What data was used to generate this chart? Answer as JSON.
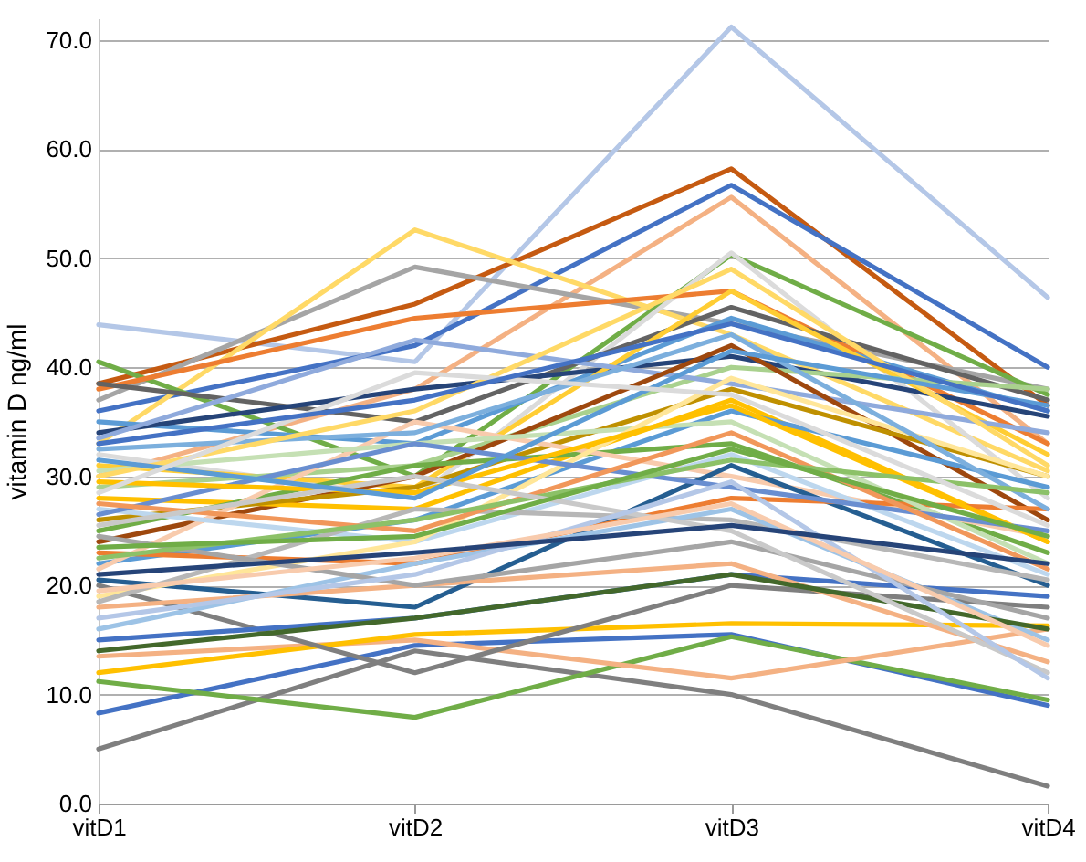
{
  "chart_data": {
    "type": "line",
    "ylabel": "vitamin D ng/ml",
    "categories": [
      "vitD1",
      "vitD2",
      "vitD3",
      "vitD4"
    ],
    "ylim": [
      0,
      72
    ],
    "yticks": [
      {
        "value": 0,
        "label": "0.0"
      },
      {
        "value": 10,
        "label": "10.0"
      },
      {
        "value": 20,
        "label": "20.0"
      },
      {
        "value": 30,
        "label": "30.0"
      },
      {
        "value": 40,
        "label": "40.0"
      },
      {
        "value": 50,
        "label": "50.0"
      },
      {
        "value": 60,
        "label": "60.0"
      },
      {
        "value": 70,
        "label": "70.0"
      }
    ],
    "grid": "y",
    "legend": false,
    "line_style": "solid",
    "marker": "none",
    "series": [
      {
        "color": "#b4c7e7",
        "values": [
          43.9,
          40.5,
          71.2,
          46.4
        ]
      },
      {
        "color": "#c55a11",
        "values": [
          38.5,
          45.8,
          58.2,
          36.5
        ]
      },
      {
        "color": "#4472c4",
        "values": [
          36.0,
          42.0,
          56.7,
          40.0
        ]
      },
      {
        "color": "#f4b183",
        "values": [
          30.0,
          38.0,
          55.6,
          33.0
        ]
      },
      {
        "color": "#a5a5a5",
        "values": [
          37.0,
          49.2,
          44.0,
          38.0
        ]
      },
      {
        "color": "#ffd966",
        "values": [
          33.0,
          52.6,
          43.0,
          30.5
        ]
      },
      {
        "color": "#70ad47",
        "values": [
          40.5,
          30.0,
          50.3,
          37.5
        ]
      },
      {
        "color": "#dbdbdb",
        "values": [
          32.0,
          28.0,
          50.5,
          28.0
        ]
      },
      {
        "color": "#7f7f7f",
        "values": [
          5.0,
          14.0,
          10.0,
          1.6
        ]
      },
      {
        "color": "#4472c4",
        "values": [
          8.3,
          14.5,
          15.5,
          9.0
        ]
      },
      {
        "color": "#70ad47",
        "values": [
          11.2,
          7.9,
          15.3,
          9.5
        ]
      },
      {
        "color": "#f4b183",
        "values": [
          13.5,
          15.0,
          11.5,
          16.0
        ]
      },
      {
        "color": "#ffc000",
        "values": [
          12.0,
          15.5,
          16.5,
          16.3
        ]
      },
      {
        "color": "#7f7f7f",
        "values": [
          20.0,
          12.0,
          20.0,
          18.0
        ]
      },
      {
        "color": "#ed7d31",
        "values": [
          38.0,
          44.5,
          47.0,
          33.0
        ]
      },
      {
        "color": "#636363",
        "values": [
          38.5,
          35.0,
          45.5,
          37.0
        ]
      },
      {
        "color": "#5b9bd5",
        "values": [
          35.0,
          33.0,
          44.5,
          36.0
        ]
      },
      {
        "color": "#264478",
        "values": [
          34.0,
          38.0,
          41.0,
          35.5
        ]
      },
      {
        "color": "#ffcd33",
        "values": [
          31.0,
          29.0,
          47.0,
          32.0
        ]
      },
      {
        "color": "#a9d18e",
        "values": [
          29.0,
          31.0,
          40.0,
          38.0
        ]
      },
      {
        "color": "#8faadc",
        "values": [
          33.5,
          42.5,
          38.5,
          34.0
        ]
      },
      {
        "color": "#9e480e",
        "values": [
          24.0,
          30.0,
          42.0,
          26.0
        ]
      },
      {
        "color": "#ffc000",
        "values": [
          28.0,
          27.0,
          37.0,
          24.0
        ]
      },
      {
        "color": "#bf9000",
        "values": [
          26.0,
          29.0,
          38.0,
          30.0
        ]
      },
      {
        "color": "#5b9bd5",
        "values": [
          22.0,
          26.0,
          36.0,
          29.0
        ]
      },
      {
        "color": "#70ad47",
        "values": [
          25.0,
          31.0,
          33.0,
          23.0
        ]
      },
      {
        "color": "#f8cbad",
        "values": [
          21.5,
          35.0,
          30.0,
          24.5
        ]
      },
      {
        "color": "#255e91",
        "values": [
          20.5,
          18.0,
          31.0,
          20.0
        ]
      },
      {
        "color": "#ed7d31",
        "values": [
          23.0,
          22.0,
          28.0,
          27.0
        ]
      },
      {
        "color": "#bdd7ee",
        "values": [
          27.0,
          24.0,
          32.0,
          21.0
        ]
      },
      {
        "color": "#c5e0b4",
        "values": [
          30.5,
          33.0,
          35.0,
          22.0
        ]
      },
      {
        "color": "#ffe699",
        "values": [
          19.0,
          24.0,
          39.0,
          30.0
        ]
      },
      {
        "color": "#b7b7b7",
        "values": [
          18.5,
          27.0,
          26.0,
          20.5
        ]
      },
      {
        "color": "#4472c4",
        "values": [
          15.0,
          17.0,
          21.0,
          19.0
        ]
      },
      {
        "color": "#f4b183",
        "values": [
          18.0,
          20.0,
          22.0,
          13.0
        ]
      },
      {
        "color": "#9dc3e6",
        "values": [
          16.0,
          22.0,
          27.0,
          15.0
        ]
      },
      {
        "color": "#a5a5a5",
        "values": [
          24.5,
          20.0,
          24.0,
          17.0
        ]
      },
      {
        "color": "#43682b",
        "values": [
          14.0,
          17.0,
          21.0,
          16.0
        ]
      },
      {
        "color": "#698ed0",
        "values": [
          26.5,
          33.0,
          29.0,
          25.0
        ]
      },
      {
        "color": "#f1975a",
        "values": [
          27.5,
          25.0,
          34.0,
          21.5
        ]
      },
      {
        "color": "#ffc000",
        "values": [
          29.5,
          28.5,
          36.5,
          24.0
        ]
      },
      {
        "color": "#7cafdd",
        "values": [
          32.5,
          34.0,
          43.0,
          27.0
        ]
      },
      {
        "color": "#8cc168",
        "values": [
          22.5,
          26.0,
          31.5,
          28.5
        ]
      },
      {
        "color": "#c9c9c9",
        "values": [
          25.5,
          30.0,
          25.0,
          12.0
        ]
      },
      {
        "color": "#b4c7e7",
        "values": [
          17.0,
          21.0,
          29.5,
          11.5
        ]
      },
      {
        "color": "#f8cbad",
        "values": [
          19.5,
          22.5,
          27.5,
          14.5
        ]
      },
      {
        "color": "#264478",
        "values": [
          21.0,
          23.0,
          25.5,
          22.0
        ]
      },
      {
        "color": "#ffd966",
        "values": [
          30.0,
          36.0,
          49.0,
          31.0
        ]
      },
      {
        "color": "#5b9bd5",
        "values": [
          31.5,
          28.0,
          41.5,
          36.5
        ]
      },
      {
        "color": "#dbdbdb",
        "values": [
          28.5,
          39.5,
          37.5,
          25.5
        ]
      },
      {
        "color": "#70ad47",
        "values": [
          23.5,
          24.5,
          32.5,
          24.5
        ]
      },
      {
        "color": "#4472c4",
        "values": [
          33.0,
          37.0,
          44.0,
          36.0
        ]
      }
    ]
  }
}
